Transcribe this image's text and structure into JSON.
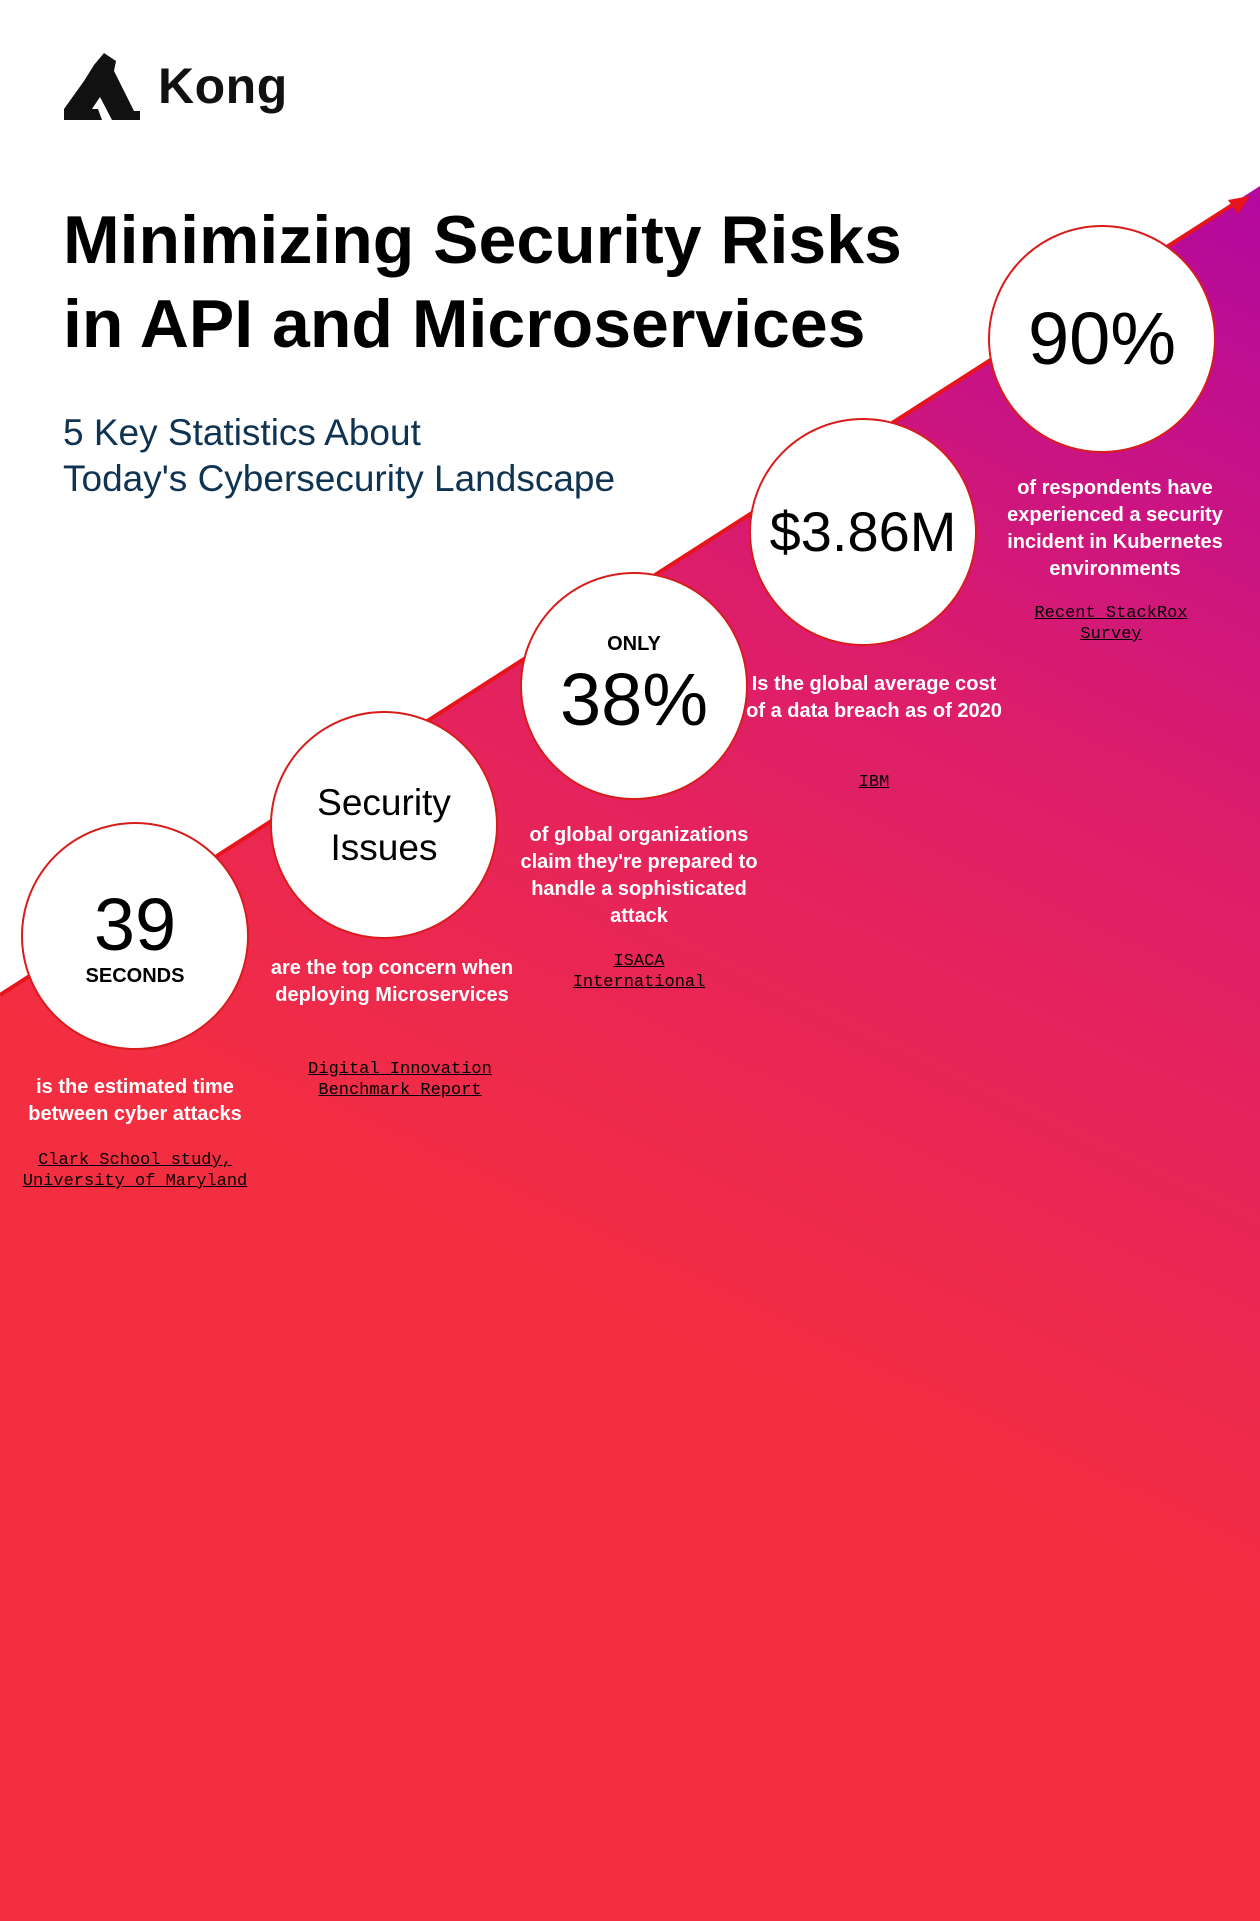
{
  "brand": {
    "name": "Kong"
  },
  "header": {
    "title_line1": "Minimizing Security Risks",
    "title_line2": "in API and Microservices",
    "subtitle_line1": "5 Key Statistics About",
    "subtitle_line2": "Today's Cybersecurity Landscape"
  },
  "colors": {
    "gradient_top": "#b3089f",
    "gradient_bottom": "#f42e41",
    "circle_border": "#d81c1c",
    "subtitle": "#0f3352"
  },
  "stats": [
    {
      "value": "39",
      "unit": "SECONDS",
      "description": "is the estimated time between cyber attacks",
      "source_line1": "Clark School study,",
      "source_line2": "University of Maryland"
    },
    {
      "value_line1": "Security",
      "value_line2": "Issues",
      "description": "are the top concern when deploying Microservices",
      "source_line1": "Digital Innovation",
      "source_line2": "Benchmark Report"
    },
    {
      "prefix": "ONLY",
      "value": "38%",
      "description": "of global organizations claim they're prepared to handle a sophisticated attack",
      "source_line1": "ISACA",
      "source_line2": "International"
    },
    {
      "value": "$3.86M",
      "description": "Is the global average cost of a data breach as of 2020",
      "source_line1": "IBM"
    },
    {
      "value": "90%",
      "description": "of respondents have experienced a security incident in Kubernetes environments",
      "source_line1": "Recent StackRox",
      "source_line2": "Survey"
    }
  ]
}
